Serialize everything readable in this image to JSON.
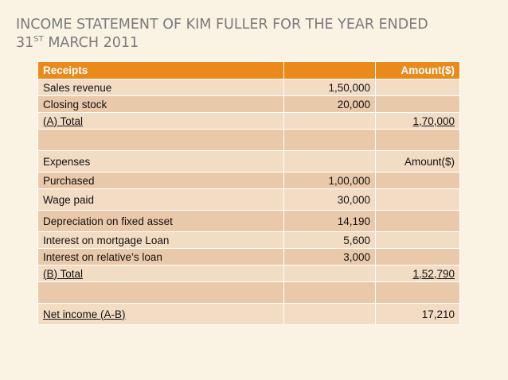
{
  "title": {
    "line1": "Income Statement of Kim Fuller for the Year Ended",
    "line2_day": "31",
    "line2_sup": "ST",
    "line2_rest": " March 2011"
  },
  "table": {
    "header": {
      "label": "Receipts",
      "amount": "",
      "total": "Amount($)"
    },
    "rows": [
      {
        "label": "Sales revenue",
        "amount": "1,50,000",
        "total": "",
        "h": 21,
        "shade": "light"
      },
      {
        "label": "Closing stock",
        "amount": "20,000",
        "total": "",
        "h": 21,
        "shade": "dark"
      },
      {
        "label": "(A) Total",
        "amount": "",
        "total": "1,70,000",
        "h": 21,
        "shade": "light",
        "underline": true
      },
      {
        "label": "",
        "amount": "",
        "total": "",
        "h": 27,
        "shade": "dark"
      },
      {
        "label": "Expenses",
        "amount": "",
        "total": "Amount($)",
        "h": 27,
        "shade": "light"
      },
      {
        "label": "Purchased",
        "amount": "1,00,000",
        "total": "",
        "h": 21,
        "shade": "dark"
      },
      {
        "label": "Wage paid",
        "amount": "30,000",
        "total": "",
        "h": 27,
        "shade": "light"
      },
      {
        "label": "Depreciation on fixed asset",
        "amount": "14,190",
        "total": "",
        "h": 27,
        "shade": "dark"
      },
      {
        "label": "Interest on mortgage Loan",
        "amount": "5,600",
        "total": "",
        "h": 21,
        "shade": "light"
      },
      {
        "label": "Interest on relative’s loan",
        "amount": "3,000",
        "total": "",
        "h": 21,
        "shade": "dark"
      },
      {
        "label": "(B) Total",
        "amount": "",
        "total": "1,52,790",
        "h": 21,
        "shade": "light",
        "underline": true
      },
      {
        "label": "",
        "amount": "",
        "total": "",
        "h": 27,
        "shade": "dark"
      },
      {
        "label": "Net income (A-B)",
        "amount": "",
        "total": "17,210",
        "h": 27,
        "shade": "light",
        "underline_label": true
      }
    ]
  }
}
